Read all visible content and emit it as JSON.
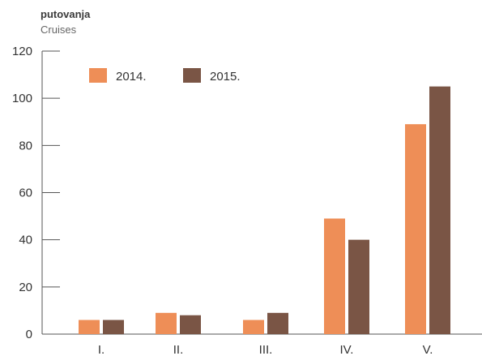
{
  "chart_data": {
    "type": "bar",
    "ylabel": "putovanja",
    "ylabel_sub": "Cruises",
    "categories": [
      "I.",
      "II.",
      "III.",
      "IV.",
      "V."
    ],
    "series": [
      {
        "name": "2014.",
        "color": "#ee8e57",
        "values": [
          6,
          9,
          6,
          49,
          89
        ]
      },
      {
        "name": "2015.",
        "color": "#7a5545",
        "values": [
          6,
          8,
          9,
          40,
          105
        ]
      }
    ],
    "ylim": [
      0,
      120
    ],
    "yticks": [
      0,
      20,
      40,
      60,
      80,
      100,
      120
    ],
    "legend_position": "top-left",
    "grid": false
  }
}
